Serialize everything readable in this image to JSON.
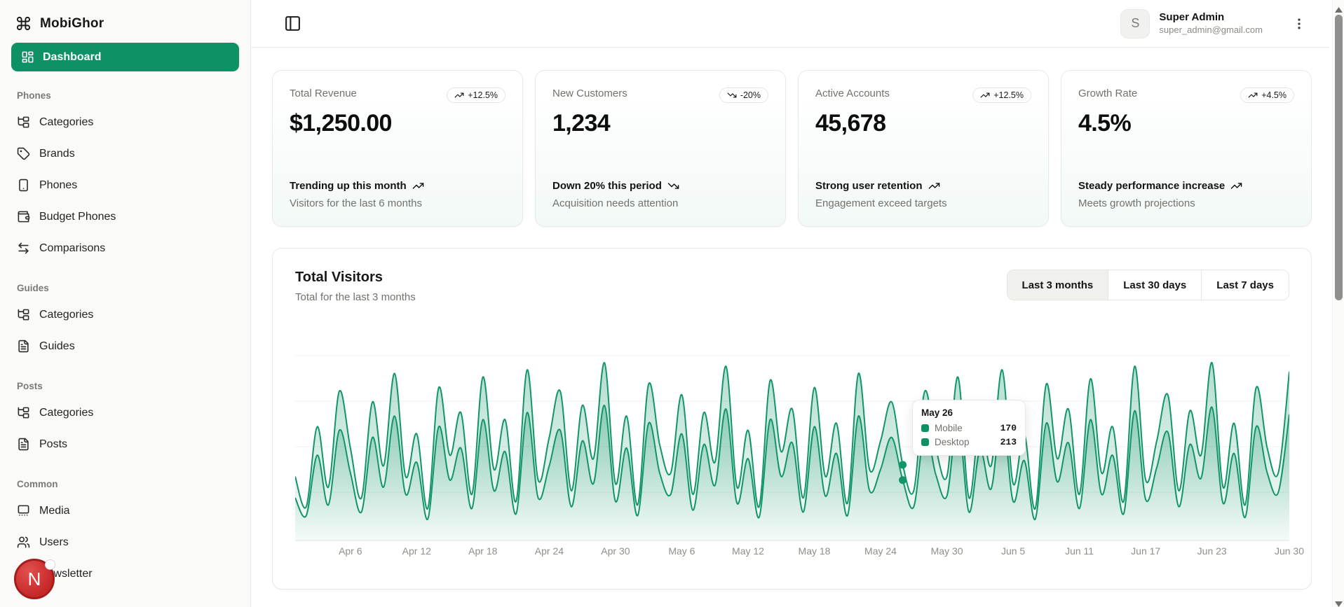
{
  "colors": {
    "primary": "#0e9164",
    "chart_stroke": "#129568",
    "chart_fill_top": "rgba(18,149,104,0.32)",
    "chart_fill_bottom": "rgba(18,149,104,0.02)"
  },
  "brand": {
    "name": "MobiGhor"
  },
  "header": {
    "user": {
      "initial": "S",
      "name": "Super Admin",
      "email": "super_admin@gmail.com"
    }
  },
  "sidebar": {
    "dashboard_label": "Dashboard",
    "dev_badge": "N",
    "sections": [
      {
        "label": "Phones",
        "items": [
          {
            "label": "Categories",
            "icon": "folder-tree-icon"
          },
          {
            "label": "Brands",
            "icon": "tag-icon"
          },
          {
            "label": "Phones",
            "icon": "smartphone-icon"
          },
          {
            "label": "Budget Phones",
            "icon": "wallet-icon"
          },
          {
            "label": "Comparisons",
            "icon": "arrows-left-right-icon"
          }
        ]
      },
      {
        "label": "Guides",
        "items": [
          {
            "label": "Categories",
            "icon": "folder-tree-icon"
          },
          {
            "label": "Guides",
            "icon": "file-text-icon"
          }
        ]
      },
      {
        "label": "Posts",
        "items": [
          {
            "label": "Categories",
            "icon": "folder-tree-icon"
          },
          {
            "label": "Posts",
            "icon": "file-text-icon"
          }
        ]
      },
      {
        "label": "Common",
        "items": [
          {
            "label": "Media",
            "icon": "media-icon"
          },
          {
            "label": "Users",
            "icon": "users-icon"
          },
          {
            "label": "Newsletter",
            "icon": "newspaper-icon"
          }
        ]
      }
    ]
  },
  "stat_cards": [
    {
      "label": "Total Revenue",
      "value": "$1,250.00",
      "badge": "+12.5%",
      "trend": "up",
      "line1": "Trending up this month",
      "line2": "Visitors for the last 6 months"
    },
    {
      "label": "New Customers",
      "value": "1,234",
      "badge": "-20%",
      "trend": "down",
      "line1": "Down 20% this period",
      "line2": "Acquisition needs attention"
    },
    {
      "label": "Active Accounts",
      "value": "45,678",
      "badge": "+12.5%",
      "trend": "up",
      "line1": "Strong user retention",
      "line2": "Engagement exceed targets"
    },
    {
      "label": "Growth Rate",
      "value": "4.5%",
      "badge": "+4.5%",
      "trend": "up",
      "line1": "Steady performance increase",
      "line2": "Meets growth projections"
    }
  ],
  "visitors_card": {
    "title": "Total Visitors",
    "subtitle": "Total for the last 3 months",
    "range_options": [
      "Last 3 months",
      "Last 30 days",
      "Last 7 days"
    ],
    "active_range": "Last 3 months"
  },
  "tooltip": {
    "title": "May 26",
    "rows": [
      {
        "name": "Mobile",
        "value": "170"
      },
      {
        "name": "Desktop",
        "value": "213"
      }
    ]
  },
  "chart_data": {
    "type": "area",
    "title": "Total Visitors",
    "x_labels": [
      "Apr 6",
      "Apr 12",
      "Apr 18",
      "Apr 24",
      "Apr 30",
      "May 6",
      "May 12",
      "May 18",
      "May 24",
      "May 30",
      "Jun 5",
      "Jun 11",
      "Jun 17",
      "Jun 23",
      "Jun 30"
    ],
    "x_label_indices": [
      5,
      11,
      17,
      23,
      29,
      35,
      41,
      47,
      53,
      59,
      65,
      71,
      77,
      83,
      90
    ],
    "n_points": 91,
    "y_max": 520,
    "grid": "horizontal",
    "legend": "tooltip-only",
    "hover_index": 55,
    "series": [
      {
        "name": "Desktop",
        "values": [
          180,
          95,
          320,
          150,
          420,
          260,
          120,
          390,
          210,
          470,
          180,
          300,
          90,
          430,
          240,
          360,
          130,
          460,
          200,
          340,
          110,
          480,
          170,
          290,
          420,
          140,
          380,
          230,
          500,
          160,
          350,
          100,
          440,
          270,
          190,
          410,
          130,
          360,
          220,
          490,
          150,
          310,
          95,
          450,
          250,
          370,
          120,
          430,
          180,
          330,
          105,
          470,
          200,
          280,
          390,
          213,
          140,
          420,
          260,
          180,
          460,
          120,
          340,
          210,
          480,
          160,
          300,
          90,
          440,
          230,
          370,
          130,
          455,
          190,
          320,
          110,
          490,
          170,
          280,
          410,
          140,
          365,
          240,
          500,
          150,
          330,
          100,
          430,
          260,
          190,
          475
        ]
      },
      {
        "name": "Mobile",
        "values": [
          120,
          70,
          240,
          100,
          310,
          190,
          80,
          290,
          150,
          350,
          130,
          220,
          60,
          320,
          170,
          260,
          90,
          340,
          140,
          250,
          75,
          360,
          120,
          210,
          310,
          95,
          280,
          160,
          380,
          110,
          260,
          70,
          330,
          190,
          130,
          300,
          85,
          270,
          155,
          370,
          105,
          230,
          65,
          340,
          180,
          275,
          80,
          320,
          125,
          245,
          70,
          350,
          140,
          200,
          290,
          170,
          95,
          310,
          185,
          125,
          345,
          80,
          255,
          145,
          360,
          110,
          225,
          60,
          330,
          165,
          275,
          90,
          340,
          130,
          240,
          75,
          365,
          115,
          205,
          305,
          95,
          270,
          175,
          375,
          105,
          245,
          65,
          320,
          190,
          135,
          355
        ]
      }
    ]
  }
}
